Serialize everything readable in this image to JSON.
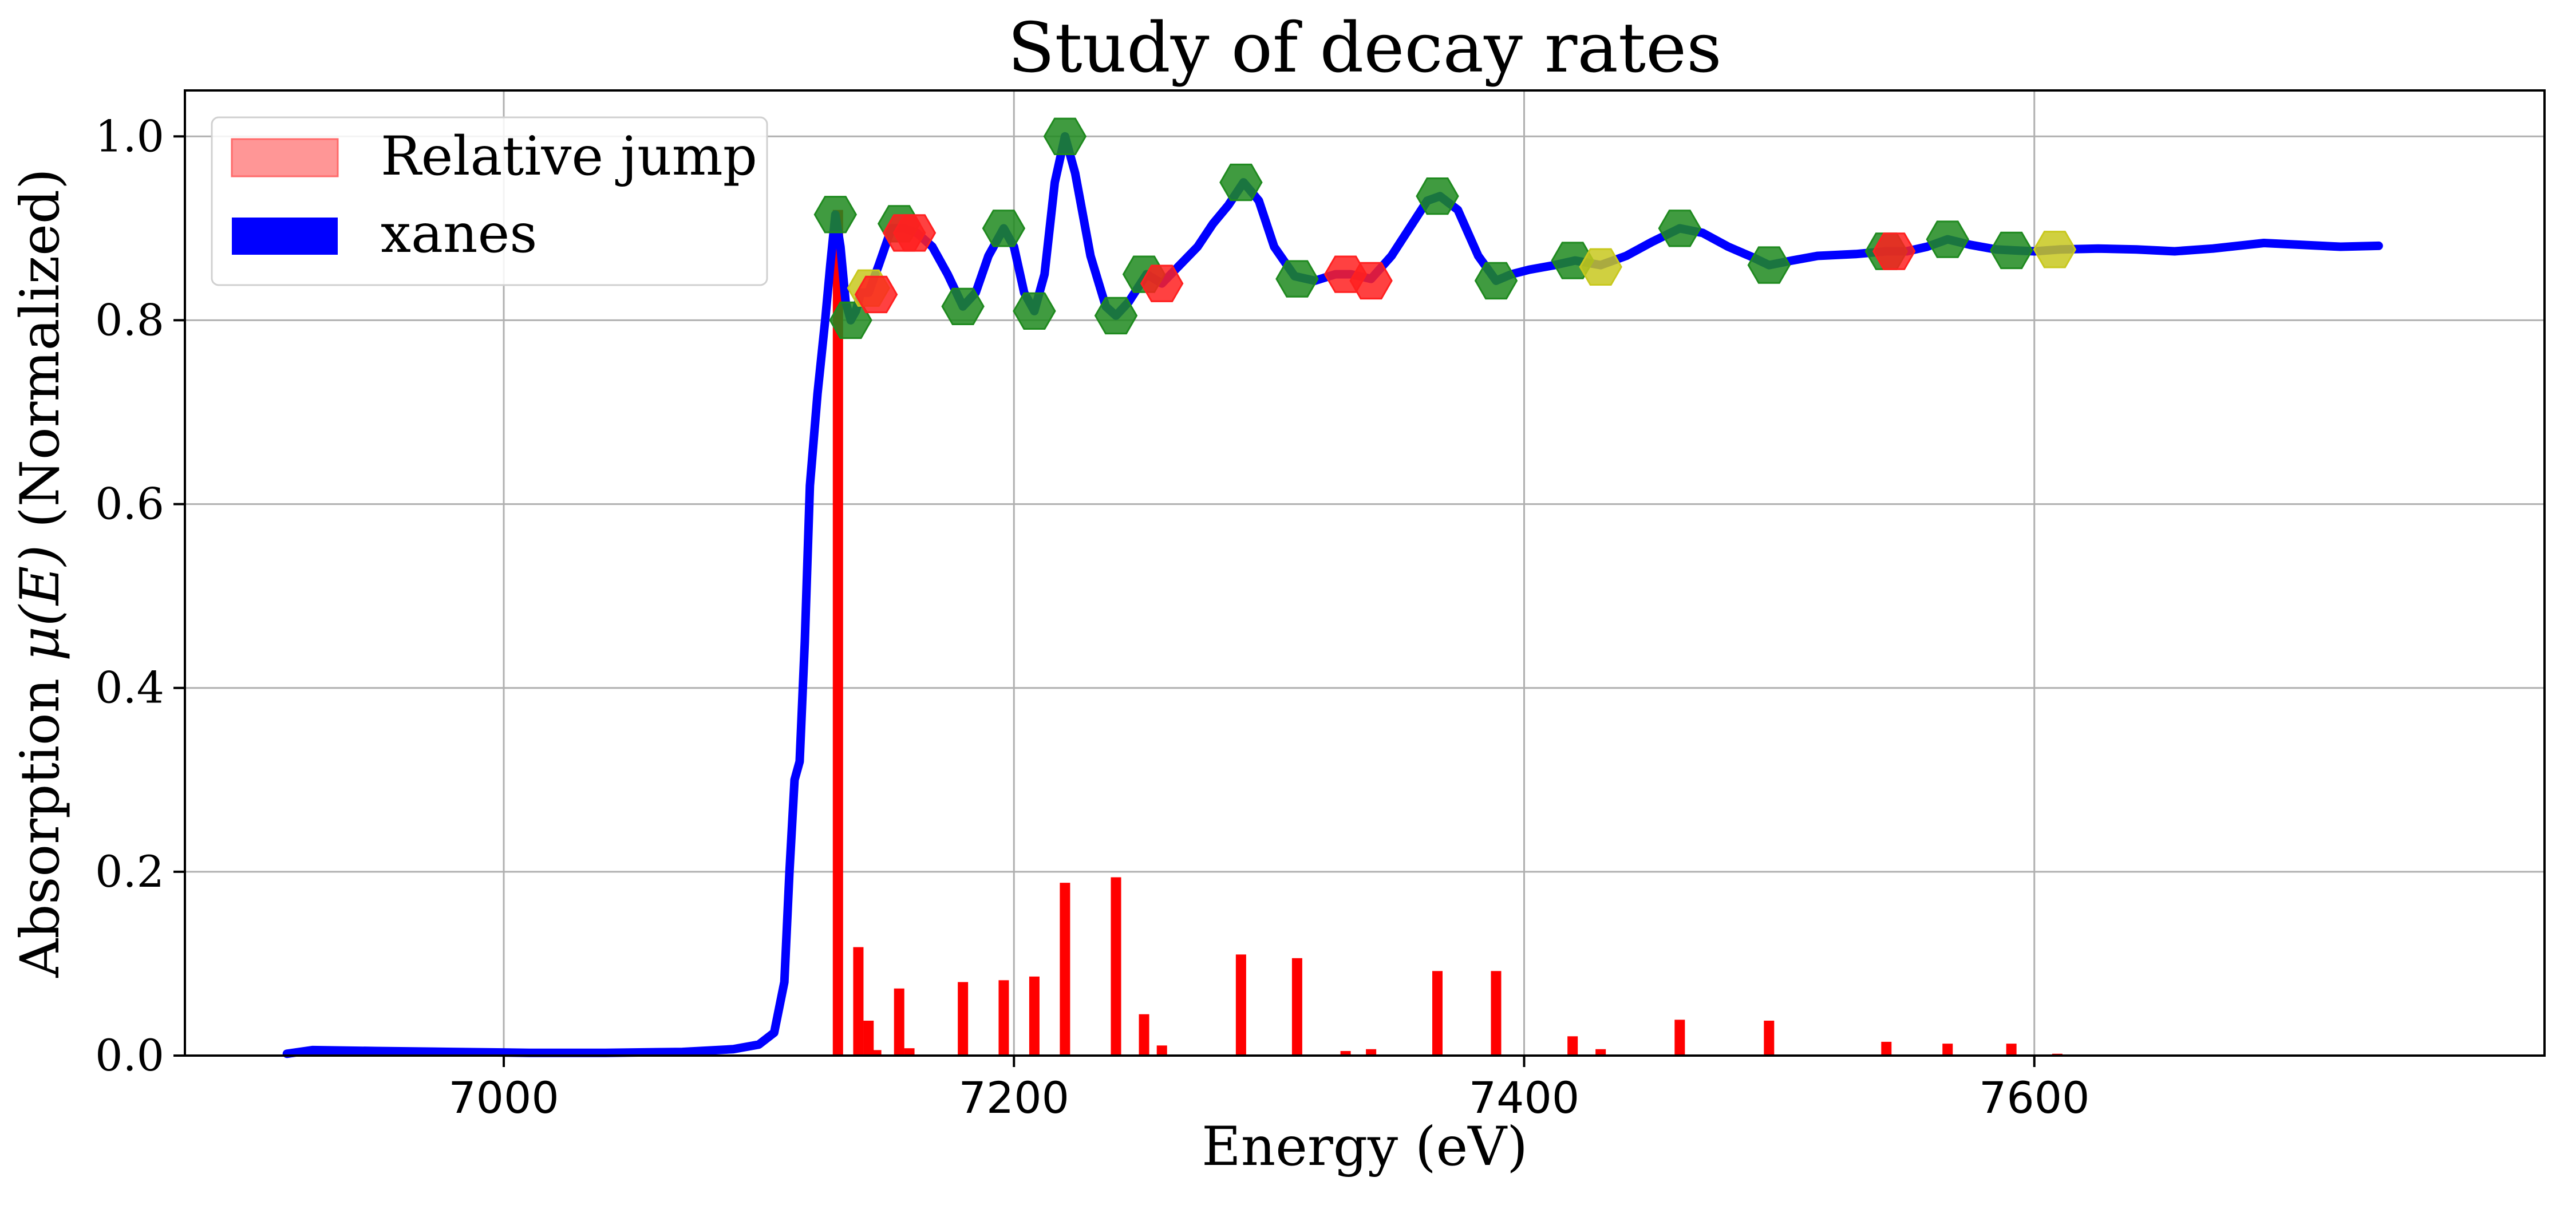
{
  "chart_data": {
    "type": "line",
    "title": "Study of decay rates",
    "xlabel": "Energy (eV)",
    "ylabel_prefix": "Absorption ",
    "ylabel_symbol": "μ(E)",
    "ylabel_suffix": " (Normalized)",
    "xlim": [
      6875,
      7800
    ],
    "ylim": [
      0,
      1.05
    ],
    "xticks": [
      7000,
      7200,
      7400,
      7600
    ],
    "xtick_labels": [
      "7000",
      "7200",
      "7400",
      "7600"
    ],
    "yticks": [
      0.0,
      0.2,
      0.4,
      0.6,
      0.8,
      1.0
    ],
    "ytick_labels": [
      "0.0",
      "0.2",
      "0.4",
      "0.6",
      "0.8",
      "1.0"
    ],
    "grid": true,
    "legend_position": "top-left",
    "legend": [
      {
        "label": "Relative jump",
        "color": "#ff9696",
        "edge": "#ff6a6a"
      },
      {
        "label": "xanes",
        "color": "#0000ff",
        "edge": "#0000ff"
      }
    ],
    "series": [
      {
        "name": "xanes",
        "kind": "line",
        "color": "#0000ff",
        "points": [
          [
            6915,
            0.002
          ],
          [
            6925,
            0.006
          ],
          [
            6950,
            0.005
          ],
          [
            6980,
            0.004
          ],
          [
            7010,
            0.003
          ],
          [
            7040,
            0.003
          ],
          [
            7070,
            0.004
          ],
          [
            7090,
            0.007
          ],
          [
            7100,
            0.012
          ],
          [
            7106,
            0.025
          ],
          [
            7110,
            0.08
          ],
          [
            7112,
            0.2
          ],
          [
            7114,
            0.3
          ],
          [
            7116,
            0.32
          ],
          [
            7118,
            0.45
          ],
          [
            7120,
            0.62
          ],
          [
            7123,
            0.72
          ],
          [
            7126,
            0.8
          ],
          [
            7128,
            0.86
          ],
          [
            7130,
            0.915
          ],
          [
            7132,
            0.88
          ],
          [
            7134,
            0.82
          ],
          [
            7136,
            0.8
          ],
          [
            7138,
            0.81
          ],
          [
            7140,
            0.83
          ],
          [
            7143,
            0.83
          ],
          [
            7147,
            0.86
          ],
          [
            7152,
            0.9
          ],
          [
            7157,
            0.9
          ],
          [
            7162,
            0.895
          ],
          [
            7168,
            0.88
          ],
          [
            7174,
            0.85
          ],
          [
            7180,
            0.815
          ],
          [
            7185,
            0.83
          ],
          [
            7190,
            0.87
          ],
          [
            7196,
            0.9
          ],
          [
            7200,
            0.88
          ],
          [
            7204,
            0.83
          ],
          [
            7208,
            0.81
          ],
          [
            7212,
            0.85
          ],
          [
            7216,
            0.95
          ],
          [
            7220,
            1.0
          ],
          [
            7224,
            0.96
          ],
          [
            7230,
            0.87
          ],
          [
            7236,
            0.815
          ],
          [
            7240,
            0.805
          ],
          [
            7245,
            0.82
          ],
          [
            7252,
            0.85
          ],
          [
            7258,
            0.84
          ],
          [
            7265,
            0.86
          ],
          [
            7272,
            0.88
          ],
          [
            7278,
            0.905
          ],
          [
            7284,
            0.925
          ],
          [
            7290,
            0.95
          ],
          [
            7296,
            0.93
          ],
          [
            7302,
            0.88
          ],
          [
            7310,
            0.848
          ],
          [
            7318,
            0.843
          ],
          [
            7326,
            0.85
          ],
          [
            7332,
            0.85
          ],
          [
            7340,
            0.845
          ],
          [
            7348,
            0.87
          ],
          [
            7355,
            0.9
          ],
          [
            7362,
            0.93
          ],
          [
            7367,
            0.935
          ],
          [
            7374,
            0.92
          ],
          [
            7382,
            0.87
          ],
          [
            7389,
            0.843
          ],
          [
            7395,
            0.85
          ],
          [
            7402,
            0.855
          ],
          [
            7412,
            0.86
          ],
          [
            7420,
            0.865
          ],
          [
            7430,
            0.86
          ],
          [
            7440,
            0.87
          ],
          [
            7450,
            0.885
          ],
          [
            7461,
            0.9
          ],
          [
            7470,
            0.895
          ],
          [
            7480,
            0.88
          ],
          [
            7490,
            0.868
          ],
          [
            7496,
            0.86
          ],
          [
            7505,
            0.865
          ],
          [
            7515,
            0.87
          ],
          [
            7530,
            0.872
          ],
          [
            7542,
            0.875
          ],
          [
            7550,
            0.875
          ],
          [
            7558,
            0.88
          ],
          [
            7566,
            0.888
          ],
          [
            7575,
            0.882
          ],
          [
            7585,
            0.877
          ],
          [
            7592,
            0.876
          ],
          [
            7600,
            0.875
          ],
          [
            7610,
            0.877
          ],
          [
            7625,
            0.878
          ],
          [
            7640,
            0.877
          ],
          [
            7655,
            0.875
          ],
          [
            7670,
            0.878
          ],
          [
            7690,
            0.884
          ],
          [
            7705,
            0.882
          ],
          [
            7720,
            0.88
          ],
          [
            7735,
            0.881
          ]
        ]
      },
      {
        "name": "Relative jump",
        "kind": "bar",
        "color": "#ff0000",
        "points": [
          [
            7131,
            0.92
          ],
          [
            7139,
            0.118
          ],
          [
            7143,
            0.038
          ],
          [
            7146,
            0.006
          ],
          [
            7155,
            0.073
          ],
          [
            7159,
            0.008
          ],
          [
            7180,
            0.08
          ],
          [
            7196,
            0.082
          ],
          [
            7208,
            0.086
          ],
          [
            7220,
            0.188
          ],
          [
            7240,
            0.194
          ],
          [
            7251,
            0.045
          ],
          [
            7258,
            0.011
          ],
          [
            7289,
            0.11
          ],
          [
            7311,
            0.106
          ],
          [
            7330,
            0.005
          ],
          [
            7340,
            0.007
          ],
          [
            7366,
            0.092
          ],
          [
            7389,
            0.092
          ],
          [
            7419,
            0.021
          ],
          [
            7430,
            0.007
          ],
          [
            7461,
            0.039
          ],
          [
            7496,
            0.038
          ],
          [
            7542,
            0.015
          ],
          [
            7566,
            0.013
          ],
          [
            7591,
            0.013
          ],
          [
            7609,
            0.002
          ]
        ]
      },
      {
        "name": "green markers",
        "kind": "scatter",
        "color": "#1f8a1f",
        "points": [
          [
            7130,
            0.915
          ],
          [
            7136,
            0.8
          ],
          [
            7155,
            0.905
          ],
          [
            7180,
            0.815
          ],
          [
            7196,
            0.9
          ],
          [
            7208,
            0.81
          ],
          [
            7220,
            1.0
          ],
          [
            7240,
            0.805
          ],
          [
            7251,
            0.85
          ],
          [
            7289,
            0.95
          ],
          [
            7311,
            0.845
          ],
          [
            7366,
            0.935
          ],
          [
            7389,
            0.843
          ],
          [
            7419,
            0.865
          ],
          [
            7461,
            0.9
          ],
          [
            7496,
            0.86
          ],
          [
            7542,
            0.875
          ],
          [
            7566,
            0.888
          ],
          [
            7591,
            0.876
          ]
        ]
      },
      {
        "name": "yellow markers",
        "kind": "scatter",
        "color": "#c8c81e",
        "points": [
          [
            7143,
            0.835
          ],
          [
            7430,
            0.858
          ],
          [
            7608,
            0.877
          ]
        ]
      },
      {
        "name": "red markers",
        "kind": "scatter",
        "color": "#ff2020",
        "points": [
          [
            7146,
            0.828
          ],
          [
            7157,
            0.895
          ],
          [
            7161,
            0.895
          ],
          [
            7258,
            0.84
          ],
          [
            7330,
            0.85
          ],
          [
            7340,
            0.843
          ],
          [
            7545,
            0.875
          ]
        ]
      }
    ]
  }
}
